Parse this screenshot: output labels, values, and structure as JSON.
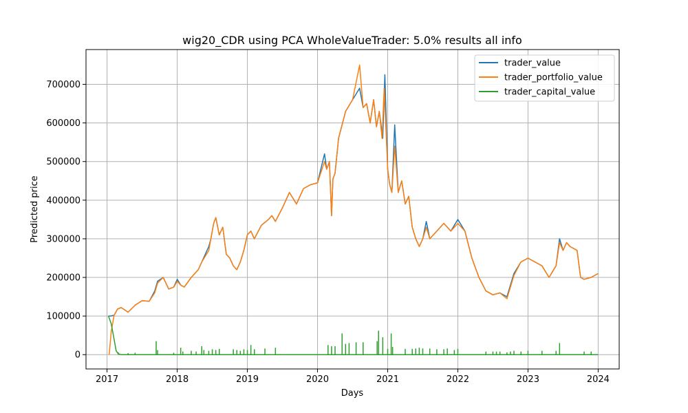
{
  "chart_data": {
    "type": "line",
    "title": "wig20_CDR using PCA WholeValueTrader: 5.0% results all info",
    "xlabel": "Days",
    "ylabel": "Predicted price",
    "xlim": [
      2016.7,
      2024.3
    ],
    "ylim": [
      -37000,
      790000
    ],
    "x_ticks": [
      2017,
      2018,
      2019,
      2020,
      2021,
      2022,
      2023,
      2024
    ],
    "x_tick_labels": [
      "2017",
      "2018",
      "2019",
      "2020",
      "2021",
      "2022",
      "2023",
      "2024"
    ],
    "y_ticks": [
      0,
      100000,
      200000,
      300000,
      400000,
      500000,
      600000,
      700000
    ],
    "y_tick_labels": [
      "0",
      "100000",
      "200000",
      "300000",
      "400000",
      "500000",
      "600000",
      "700000"
    ],
    "grid": true,
    "legend_position": "top-right",
    "series": [
      {
        "name": "trader_value",
        "color": "#1f77b4",
        "x": [
          2017.02,
          2017.05,
          2017.1,
          2017.15,
          2017.2,
          2017.3,
          2017.4,
          2017.5,
          2017.6,
          2017.68,
          2017.72,
          2017.8,
          2017.88,
          2017.95,
          2018.0,
          2018.05,
          2018.1,
          2018.2,
          2018.3,
          2018.35,
          2018.45,
          2018.48,
          2018.52,
          2018.55,
          2018.6,
          2018.65,
          2018.7,
          2018.75,
          2018.8,
          2018.85,
          2018.9,
          2018.95,
          2019.0,
          2019.05,
          2019.1,
          2019.2,
          2019.3,
          2019.35,
          2019.4,
          2019.5,
          2019.6,
          2019.7,
          2019.8,
          2019.9,
          2020.0,
          2020.1,
          2020.13,
          2020.17,
          2020.2,
          2020.22,
          2020.25,
          2020.3,
          2020.4,
          2020.5,
          2020.6,
          2020.65,
          2020.7,
          2020.75,
          2020.8,
          2020.84,
          2020.88,
          2020.93,
          2020.96,
          2021.0,
          2021.03,
          2021.06,
          2021.1,
          2021.15,
          2021.2,
          2021.25,
          2021.3,
          2021.35,
          2021.4,
          2021.45,
          2021.5,
          2021.55,
          2021.6,
          2021.7,
          2021.8,
          2021.9,
          2022.0,
          2022.1,
          2022.2,
          2022.3,
          2022.4,
          2022.5,
          2022.6,
          2022.7,
          2022.8,
          2022.9,
          2023.0,
          2023.1,
          2023.2,
          2023.3,
          2023.4,
          2023.45,
          2023.5,
          2023.55,
          2023.6,
          2023.7,
          2023.75,
          2023.8,
          2023.9,
          2024.0
        ],
        "y": [
          100000,
          100000,
          102000,
          118000,
          122000,
          110000,
          128000,
          140000,
          138000,
          165000,
          190000,
          200000,
          170000,
          175000,
          195000,
          180000,
          175000,
          200000,
          220000,
          240000,
          280000,
          300000,
          340000,
          355000,
          310000,
          330000,
          260000,
          250000,
          230000,
          220000,
          240000,
          270000,
          310000,
          320000,
          300000,
          335000,
          350000,
          360000,
          345000,
          380000,
          420000,
          390000,
          430000,
          440000,
          445000,
          520000,
          480000,
          500000,
          360000,
          455000,
          470000,
          560000,
          630000,
          660000,
          690000,
          640000,
          650000,
          600000,
          660000,
          590000,
          630000,
          560000,
          725000,
          480000,
          440000,
          420000,
          595000,
          420000,
          450000,
          390000,
          410000,
          330000,
          300000,
          280000,
          300000,
          345000,
          300000,
          320000,
          340000,
          320000,
          350000,
          320000,
          250000,
          200000,
          165000,
          155000,
          160000,
          150000,
          210000,
          240000,
          250000,
          240000,
          230000,
          200000,
          230000,
          300000,
          270000,
          290000,
          280000,
          270000,
          200000,
          195000,
          200000,
          210000
        ]
      },
      {
        "name": "trader_portfolio_value",
        "color": "#ff7f0e",
        "x": [
          2017.03,
          2017.06,
          2017.1,
          2017.15,
          2017.2,
          2017.3,
          2017.4,
          2017.5,
          2017.6,
          2017.68,
          2017.72,
          2017.8,
          2017.88,
          2017.95,
          2018.0,
          2018.05,
          2018.1,
          2018.2,
          2018.3,
          2018.35,
          2018.45,
          2018.48,
          2018.52,
          2018.55,
          2018.6,
          2018.65,
          2018.7,
          2018.75,
          2018.8,
          2018.85,
          2018.9,
          2018.95,
          2019.0,
          2019.05,
          2019.1,
          2019.2,
          2019.3,
          2019.35,
          2019.4,
          2019.5,
          2019.6,
          2019.7,
          2019.8,
          2019.9,
          2020.0,
          2020.1,
          2020.13,
          2020.17,
          2020.2,
          2020.22,
          2020.25,
          2020.3,
          2020.4,
          2020.5,
          2020.6,
          2020.65,
          2020.7,
          2020.75,
          2020.8,
          2020.84,
          2020.88,
          2020.92,
          2020.95,
          2021.0,
          2021.03,
          2021.06,
          2021.1,
          2021.15,
          2021.2,
          2021.25,
          2021.3,
          2021.35,
          2021.4,
          2021.45,
          2021.5,
          2021.55,
          2021.6,
          2021.7,
          2021.8,
          2021.9,
          2022.0,
          2022.1,
          2022.2,
          2022.3,
          2022.4,
          2022.5,
          2022.6,
          2022.7,
          2022.8,
          2022.9,
          2023.0,
          2023.1,
          2023.2,
          2023.3,
          2023.4,
          2023.45,
          2023.5,
          2023.55,
          2023.6,
          2023.7,
          2023.75,
          2023.8,
          2023.9,
          2024.0
        ],
        "y": [
          0,
          60000,
          102000,
          118000,
          122000,
          110000,
          128000,
          140000,
          138000,
          160000,
          185000,
          200000,
          170000,
          175000,
          190000,
          180000,
          175000,
          200000,
          220000,
          240000,
          270000,
          300000,
          340000,
          355000,
          310000,
          330000,
          260000,
          250000,
          230000,
          220000,
          240000,
          270000,
          310000,
          320000,
          300000,
          335000,
          350000,
          360000,
          345000,
          380000,
          420000,
          390000,
          430000,
          440000,
          445000,
          500000,
          480000,
          500000,
          360000,
          455000,
          470000,
          560000,
          630000,
          660000,
          750000,
          640000,
          650000,
          600000,
          660000,
          590000,
          630000,
          560000,
          690000,
          480000,
          440000,
          420000,
          540000,
          420000,
          450000,
          390000,
          410000,
          330000,
          300000,
          280000,
          300000,
          330000,
          300000,
          320000,
          340000,
          320000,
          340000,
          320000,
          250000,
          200000,
          165000,
          155000,
          160000,
          145000,
          205000,
          240000,
          250000,
          240000,
          230000,
          200000,
          230000,
          290000,
          270000,
          290000,
          280000,
          270000,
          200000,
          195000,
          200000,
          210000
        ]
      },
      {
        "name": "trader_capital_value",
        "color": "#2ca02c",
        "x": [
          2017.02,
          2017.06,
          2017.1,
          2017.13,
          2017.16,
          2017.2,
          2024.0
        ],
        "y": [
          100000,
          80000,
          40000,
          10000,
          2000,
          0,
          0
        ],
        "spikes": [
          [
            2017.16,
            6000
          ],
          [
            2017.3,
            4000
          ],
          [
            2017.4,
            5000
          ],
          [
            2017.7,
            35000
          ],
          [
            2017.72,
            12000
          ],
          [
            2017.95,
            5000
          ],
          [
            2018.05,
            18000
          ],
          [
            2018.08,
            8000
          ],
          [
            2018.2,
            10000
          ],
          [
            2018.27,
            8000
          ],
          [
            2018.35,
            22000
          ],
          [
            2018.38,
            12000
          ],
          [
            2018.45,
            10000
          ],
          [
            2018.5,
            14000
          ],
          [
            2018.55,
            12000
          ],
          [
            2018.6,
            15000
          ],
          [
            2018.8,
            14000
          ],
          [
            2018.85,
            12000
          ],
          [
            2018.9,
            10000
          ],
          [
            2018.95,
            14000
          ],
          [
            2019.0,
            12000
          ],
          [
            2019.05,
            25000
          ],
          [
            2019.1,
            14000
          ],
          [
            2019.25,
            16000
          ],
          [
            2019.4,
            18000
          ],
          [
            2020.15,
            25000
          ],
          [
            2020.2,
            22000
          ],
          [
            2020.25,
            22000
          ],
          [
            2020.35,
            55000
          ],
          [
            2020.4,
            28000
          ],
          [
            2020.45,
            30000
          ],
          [
            2020.55,
            32000
          ],
          [
            2020.65,
            32000
          ],
          [
            2020.85,
            35000
          ],
          [
            2020.87,
            62000
          ],
          [
            2020.93,
            45000
          ],
          [
            2021.0,
            15000
          ],
          [
            2021.05,
            55000
          ],
          [
            2021.07,
            20000
          ],
          [
            2021.25,
            15000
          ],
          [
            2021.35,
            15000
          ],
          [
            2021.4,
            16000
          ],
          [
            2021.45,
            18000
          ],
          [
            2021.5,
            16000
          ],
          [
            2021.6,
            16000
          ],
          [
            2021.7,
            14000
          ],
          [
            2021.8,
            14000
          ],
          [
            2021.85,
            16000
          ],
          [
            2021.95,
            12000
          ],
          [
            2022.0,
            15000
          ],
          [
            2022.4,
            8000
          ],
          [
            2022.5,
            8000
          ],
          [
            2022.55,
            8000
          ],
          [
            2022.6,
            8000
          ],
          [
            2022.7,
            6000
          ],
          [
            2022.75,
            8000
          ],
          [
            2022.8,
            10000
          ],
          [
            2022.9,
            8000
          ],
          [
            2023.0,
            10000
          ],
          [
            2023.2,
            10000
          ],
          [
            2023.4,
            10000
          ],
          [
            2023.45,
            30000
          ],
          [
            2023.8,
            8000
          ],
          [
            2023.9,
            8000
          ]
        ]
      }
    ]
  }
}
